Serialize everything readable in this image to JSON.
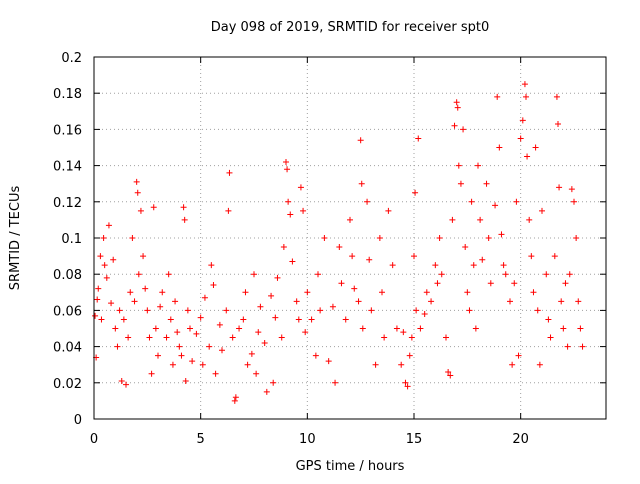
{
  "chart_data": {
    "type": "scatter",
    "title": "Day 098 of 2019, SRMTID for receiver spt0",
    "xlabel": "GPS time / hours",
    "ylabel": "SRMTID / TECUs",
    "xlim": [
      0,
      24
    ],
    "ylim": [
      0,
      0.2
    ],
    "x_ticks": [
      0,
      5,
      10,
      15,
      20
    ],
    "y_ticks": [
      0,
      0.02,
      0.04,
      0.06,
      0.08,
      0.1,
      0.12,
      0.14,
      0.16,
      0.18,
      0.2
    ],
    "x_tick_labels": [
      "0",
      "5",
      "10",
      "15",
      "20"
    ],
    "y_tick_labels": [
      "0",
      "0.02",
      "0.04",
      "0.06",
      "0.08",
      "0.1",
      "0.12",
      "0.14",
      "0.16",
      "0.18",
      "0.2"
    ],
    "grid": true,
    "marker": "+",
    "color": "#ff0000",
    "points": [
      [
        0.05,
        0.057
      ],
      [
        0.1,
        0.034
      ],
      [
        0.15,
        0.066
      ],
      [
        0.2,
        0.072
      ],
      [
        0.3,
        0.09
      ],
      [
        0.35,
        0.055
      ],
      [
        0.45,
        0.1
      ],
      [
        0.5,
        0.085
      ],
      [
        0.6,
        0.078
      ],
      [
        0.7,
        0.107
      ],
      [
        0.8,
        0.064
      ],
      [
        0.9,
        0.088
      ],
      [
        1.0,
        0.05
      ],
      [
        1.1,
        0.04
      ],
      [
        1.2,
        0.06
      ],
      [
        1.3,
        0.021
      ],
      [
        1.4,
        0.055
      ],
      [
        1.5,
        0.019
      ],
      [
        1.6,
        0.045
      ],
      [
        1.7,
        0.07
      ],
      [
        1.8,
        0.1
      ],
      [
        1.9,
        0.065
      ],
      [
        2.0,
        0.131
      ],
      [
        2.05,
        0.125
      ],
      [
        2.1,
        0.08
      ],
      [
        2.2,
        0.115
      ],
      [
        2.3,
        0.09
      ],
      [
        2.4,
        0.072
      ],
      [
        2.5,
        0.06
      ],
      [
        2.6,
        0.045
      ],
      [
        2.7,
        0.025
      ],
      [
        2.8,
        0.117
      ],
      [
        2.9,
        0.05
      ],
      [
        3.0,
        0.035
      ],
      [
        3.1,
        0.062
      ],
      [
        3.2,
        0.07
      ],
      [
        3.4,
        0.045
      ],
      [
        3.5,
        0.08
      ],
      [
        3.6,
        0.055
      ],
      [
        3.7,
        0.03
      ],
      [
        3.8,
        0.065
      ],
      [
        3.9,
        0.048
      ],
      [
        4.0,
        0.04
      ],
      [
        4.1,
        0.035
      ],
      [
        4.2,
        0.117
      ],
      [
        4.25,
        0.11
      ],
      [
        4.3,
        0.021
      ],
      [
        4.4,
        0.06
      ],
      [
        4.5,
        0.05
      ],
      [
        4.6,
        0.032
      ],
      [
        4.8,
        0.047
      ],
      [
        5.0,
        0.056
      ],
      [
        5.1,
        0.03
      ],
      [
        5.2,
        0.067
      ],
      [
        5.4,
        0.04
      ],
      [
        5.5,
        0.085
      ],
      [
        5.6,
        0.074
      ],
      [
        5.7,
        0.025
      ],
      [
        5.9,
        0.052
      ],
      [
        6.0,
        0.038
      ],
      [
        6.2,
        0.06
      ],
      [
        6.3,
        0.115
      ],
      [
        6.35,
        0.136
      ],
      [
        6.5,
        0.045
      ],
      [
        6.6,
        0.01
      ],
      [
        6.65,
        0.012
      ],
      [
        6.8,
        0.05
      ],
      [
        7.0,
        0.055
      ],
      [
        7.1,
        0.07
      ],
      [
        7.2,
        0.03
      ],
      [
        7.4,
        0.036
      ],
      [
        7.5,
        0.08
      ],
      [
        7.6,
        0.025
      ],
      [
        7.7,
        0.048
      ],
      [
        7.8,
        0.062
      ],
      [
        8.0,
        0.042
      ],
      [
        8.1,
        0.015
      ],
      [
        8.3,
        0.068
      ],
      [
        8.4,
        0.02
      ],
      [
        8.5,
        0.056
      ],
      [
        8.6,
        0.078
      ],
      [
        8.8,
        0.045
      ],
      [
        8.9,
        0.095
      ],
      [
        9.0,
        0.142
      ],
      [
        9.05,
        0.138
      ],
      [
        9.1,
        0.12
      ],
      [
        9.2,
        0.113
      ],
      [
        9.3,
        0.087
      ],
      [
        9.5,
        0.065
      ],
      [
        9.6,
        0.055
      ],
      [
        9.7,
        0.128
      ],
      [
        9.8,
        0.115
      ],
      [
        9.9,
        0.048
      ],
      [
        10.0,
        0.07
      ],
      [
        10.2,
        0.055
      ],
      [
        10.4,
        0.035
      ],
      [
        10.5,
        0.08
      ],
      [
        10.6,
        0.06
      ],
      [
        10.8,
        0.1
      ],
      [
        11.0,
        0.032
      ],
      [
        11.2,
        0.062
      ],
      [
        11.3,
        0.02
      ],
      [
        11.5,
        0.095
      ],
      [
        11.6,
        0.075
      ],
      [
        11.8,
        0.055
      ],
      [
        12.0,
        0.11
      ],
      [
        12.1,
        0.09
      ],
      [
        12.2,
        0.072
      ],
      [
        12.4,
        0.065
      ],
      [
        12.5,
        0.154
      ],
      [
        12.55,
        0.13
      ],
      [
        12.6,
        0.05
      ],
      [
        12.8,
        0.12
      ],
      [
        12.9,
        0.088
      ],
      [
        13.0,
        0.06
      ],
      [
        13.2,
        0.03
      ],
      [
        13.4,
        0.1
      ],
      [
        13.5,
        0.07
      ],
      [
        13.6,
        0.045
      ],
      [
        13.8,
        0.115
      ],
      [
        14.0,
        0.085
      ],
      [
        14.2,
        0.05
      ],
      [
        14.4,
        0.03
      ],
      [
        14.5,
        0.048
      ],
      [
        14.6,
        0.02
      ],
      [
        14.7,
        0.018
      ],
      [
        14.8,
        0.035
      ],
      [
        14.9,
        0.045
      ],
      [
        15.0,
        0.09
      ],
      [
        15.05,
        0.125
      ],
      [
        15.1,
        0.06
      ],
      [
        15.2,
        0.155
      ],
      [
        15.3,
        0.05
      ],
      [
        15.5,
        0.058
      ],
      [
        15.6,
        0.07
      ],
      [
        15.8,
        0.065
      ],
      [
        16.0,
        0.085
      ],
      [
        16.1,
        0.075
      ],
      [
        16.2,
        0.1
      ],
      [
        16.3,
        0.08
      ],
      [
        16.5,
        0.045
      ],
      [
        16.6,
        0.026
      ],
      [
        16.7,
        0.024
      ],
      [
        16.8,
        0.11
      ],
      [
        16.9,
        0.162
      ],
      [
        17.0,
        0.175
      ],
      [
        17.05,
        0.172
      ],
      [
        17.1,
        0.14
      ],
      [
        17.2,
        0.13
      ],
      [
        17.3,
        0.16
      ],
      [
        17.4,
        0.095
      ],
      [
        17.5,
        0.07
      ],
      [
        17.6,
        0.06
      ],
      [
        17.7,
        0.12
      ],
      [
        17.8,
        0.085
      ],
      [
        17.9,
        0.05
      ],
      [
        18.0,
        0.14
      ],
      [
        18.1,
        0.11
      ],
      [
        18.2,
        0.088
      ],
      [
        18.4,
        0.13
      ],
      [
        18.5,
        0.1
      ],
      [
        18.6,
        0.075
      ],
      [
        18.8,
        0.118
      ],
      [
        18.9,
        0.178
      ],
      [
        19.0,
        0.15
      ],
      [
        19.1,
        0.102
      ],
      [
        19.2,
        0.085
      ],
      [
        19.3,
        0.08
      ],
      [
        19.5,
        0.065
      ],
      [
        19.6,
        0.03
      ],
      [
        19.7,
        0.075
      ],
      [
        19.8,
        0.12
      ],
      [
        19.9,
        0.035
      ],
      [
        20.0,
        0.155
      ],
      [
        20.1,
        0.165
      ],
      [
        20.2,
        0.185
      ],
      [
        20.25,
        0.178
      ],
      [
        20.3,
        0.145
      ],
      [
        20.4,
        0.11
      ],
      [
        20.5,
        0.09
      ],
      [
        20.6,
        0.07
      ],
      [
        20.7,
        0.15
      ],
      [
        20.8,
        0.06
      ],
      [
        20.9,
        0.03
      ],
      [
        21.0,
        0.115
      ],
      [
        21.2,
        0.08
      ],
      [
        21.3,
        0.055
      ],
      [
        21.4,
        0.045
      ],
      [
        21.6,
        0.09
      ],
      [
        21.7,
        0.178
      ],
      [
        21.75,
        0.163
      ],
      [
        21.8,
        0.128
      ],
      [
        21.9,
        0.065
      ],
      [
        22.0,
        0.05
      ],
      [
        22.1,
        0.075
      ],
      [
        22.2,
        0.04
      ],
      [
        22.3,
        0.08
      ],
      [
        22.4,
        0.127
      ],
      [
        22.5,
        0.12
      ],
      [
        22.6,
        0.1
      ],
      [
        22.7,
        0.065
      ],
      [
        22.8,
        0.05
      ],
      [
        22.9,
        0.04
      ]
    ]
  }
}
